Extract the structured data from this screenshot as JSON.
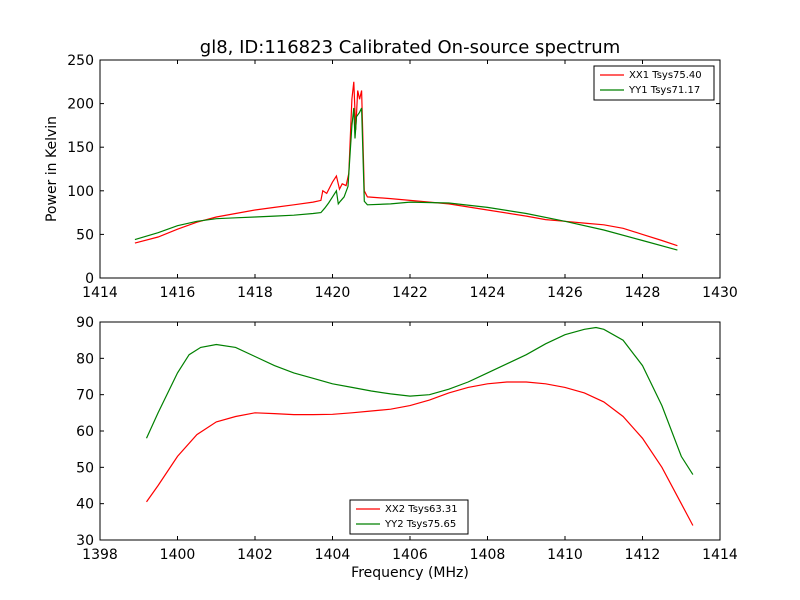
{
  "chart_data": [
    {
      "type": "line",
      "title": "gl8, ID:116823 Calibrated On-source spectrum",
      "xlabel": "",
      "ylabel": "Power in Kelvin",
      "xlim": [
        1414,
        1430
      ],
      "ylim": [
        0,
        250
      ],
      "xticks": [
        "1414",
        "1416",
        "1418",
        "1420",
        "1422",
        "1424",
        "1426",
        "1428",
        "1430"
      ],
      "yticks": [
        "0",
        "50",
        "100",
        "150",
        "200",
        "250"
      ],
      "grid": false,
      "legend_position": "top-right",
      "series": [
        {
          "name": "XX1 Tsys75.40",
          "color": "#ff0000",
          "points": [
            [
              1414.9,
              40
            ],
            [
              1415.5,
              47
            ],
            [
              1416,
              56
            ],
            [
              1416.5,
              64
            ],
            [
              1417,
              70
            ],
            [
              1417.5,
              74
            ],
            [
              1418,
              78
            ],
            [
              1418.5,
              81
            ],
            [
              1419,
              84
            ],
            [
              1419.5,
              87
            ],
            [
              1419.7,
              89
            ],
            [
              1419.75,
              100
            ],
            [
              1419.85,
              97
            ],
            [
              1420.0,
              110
            ],
            [
              1420.1,
              117
            ],
            [
              1420.18,
              102
            ],
            [
              1420.25,
              108
            ],
            [
              1420.35,
              106
            ],
            [
              1420.42,
              120
            ],
            [
              1420.5,
              205
            ],
            [
              1420.55,
              225
            ],
            [
              1420.6,
              170
            ],
            [
              1420.65,
              215
            ],
            [
              1420.7,
              205
            ],
            [
              1420.75,
              215
            ],
            [
              1420.82,
              100
            ],
            [
              1420.9,
              93
            ],
            [
              1421.5,
              91
            ],
            [
              1422,
              89
            ],
            [
              1423,
              85
            ],
            [
              1424,
              78
            ],
            [
              1425,
              71
            ],
            [
              1425.5,
              67
            ],
            [
              1426,
              65
            ],
            [
              1426.5,
              63
            ],
            [
              1427,
              61
            ],
            [
              1427.5,
              57
            ],
            [
              1428,
              50
            ],
            [
              1428.5,
              43
            ],
            [
              1428.9,
              37
            ]
          ]
        },
        {
          "name": "YY1 Tsys71.17",
          "color": "#008000",
          "points": [
            [
              1414.9,
              44
            ],
            [
              1415.5,
              52
            ],
            [
              1416,
              60
            ],
            [
              1416.5,
              65
            ],
            [
              1417,
              68
            ],
            [
              1417.5,
              69
            ],
            [
              1418,
              70
            ],
            [
              1418.5,
              71
            ],
            [
              1419,
              72
            ],
            [
              1419.5,
              74
            ],
            [
              1419.7,
              75
            ],
            [
              1419.8,
              80
            ],
            [
              1419.9,
              86
            ],
            [
              1420.0,
              93
            ],
            [
              1420.1,
              100
            ],
            [
              1420.15,
              85
            ],
            [
              1420.2,
              88
            ],
            [
              1420.3,
              93
            ],
            [
              1420.4,
              105
            ],
            [
              1420.5,
              175
            ],
            [
              1420.55,
              195
            ],
            [
              1420.58,
              160
            ],
            [
              1420.62,
              185
            ],
            [
              1420.7,
              190
            ],
            [
              1420.75,
              195
            ],
            [
              1420.82,
              88
            ],
            [
              1420.9,
              84
            ],
            [
              1421.5,
              85
            ],
            [
              1422,
              87
            ],
            [
              1423,
              86
            ],
            [
              1424,
              81
            ],
            [
              1425,
              74
            ],
            [
              1426,
              65
            ],
            [
              1427,
              55
            ],
            [
              1428,
              43
            ],
            [
              1428.9,
              32
            ]
          ]
        }
      ]
    },
    {
      "type": "line",
      "title": "",
      "xlabel": "Frequency (MHz)",
      "ylabel": "",
      "xlim": [
        1398,
        1414
      ],
      "ylim": [
        30,
        90
      ],
      "xticks": [
        "1398",
        "1400",
        "1402",
        "1404",
        "1406",
        "1408",
        "1410",
        "1412",
        "1414"
      ],
      "yticks": [
        "30",
        "40",
        "50",
        "60",
        "70",
        "80",
        "90"
      ],
      "grid": false,
      "legend_position": "bottom-center",
      "series": [
        {
          "name": "XX2 Tsys63.31",
          "color": "#ff0000",
          "points": [
            [
              1399.2,
              40.5
            ],
            [
              1399.5,
              45
            ],
            [
              1400,
              53
            ],
            [
              1400.5,
              59
            ],
            [
              1401,
              62.5
            ],
            [
              1401.5,
              64
            ],
            [
              1402,
              65
            ],
            [
              1402.5,
              64.8
            ],
            [
              1403,
              64.5
            ],
            [
              1403.5,
              64.5
            ],
            [
              1404,
              64.6
            ],
            [
              1404.5,
              65
            ],
            [
              1405,
              65.5
            ],
            [
              1405.5,
              66
            ],
            [
              1406,
              67
            ],
            [
              1406.5,
              68.5
            ],
            [
              1407,
              70.5
            ],
            [
              1407.5,
              72
            ],
            [
              1408,
              73
            ],
            [
              1408.5,
              73.5
            ],
            [
              1409,
              73.5
            ],
            [
              1409.5,
              73
            ],
            [
              1410,
              72
            ],
            [
              1410.5,
              70.5
            ],
            [
              1411,
              68
            ],
            [
              1411.5,
              64
            ],
            [
              1412,
              58
            ],
            [
              1412.5,
              50
            ],
            [
              1413,
              40
            ],
            [
              1413.3,
              34
            ]
          ]
        },
        {
          "name": "YY2 Tsys75.65",
          "color": "#008000",
          "points": [
            [
              1399.2,
              58
            ],
            [
              1399.5,
              65
            ],
            [
              1400,
              76
            ],
            [
              1400.3,
              81
            ],
            [
              1400.6,
              83
            ],
            [
              1401,
              83.8
            ],
            [
              1401.5,
              83
            ],
            [
              1402,
              80.5
            ],
            [
              1402.5,
              78
            ],
            [
              1403,
              76
            ],
            [
              1403.5,
              74.5
            ],
            [
              1404,
              73
            ],
            [
              1404.5,
              72
            ],
            [
              1405,
              71
            ],
            [
              1405.5,
              70.2
            ],
            [
              1406,
              69.6
            ],
            [
              1406.5,
              70
            ],
            [
              1407,
              71.5
            ],
            [
              1407.5,
              73.5
            ],
            [
              1408,
              76
            ],
            [
              1408.5,
              78.5
            ],
            [
              1409,
              81
            ],
            [
              1409.5,
              84
            ],
            [
              1410,
              86.5
            ],
            [
              1410.5,
              88
            ],
            [
              1410.8,
              88.5
            ],
            [
              1411,
              88
            ],
            [
              1411.5,
              85
            ],
            [
              1412,
              78
            ],
            [
              1412.5,
              67
            ],
            [
              1413,
              53
            ],
            [
              1413.3,
              48
            ]
          ]
        }
      ]
    }
  ]
}
